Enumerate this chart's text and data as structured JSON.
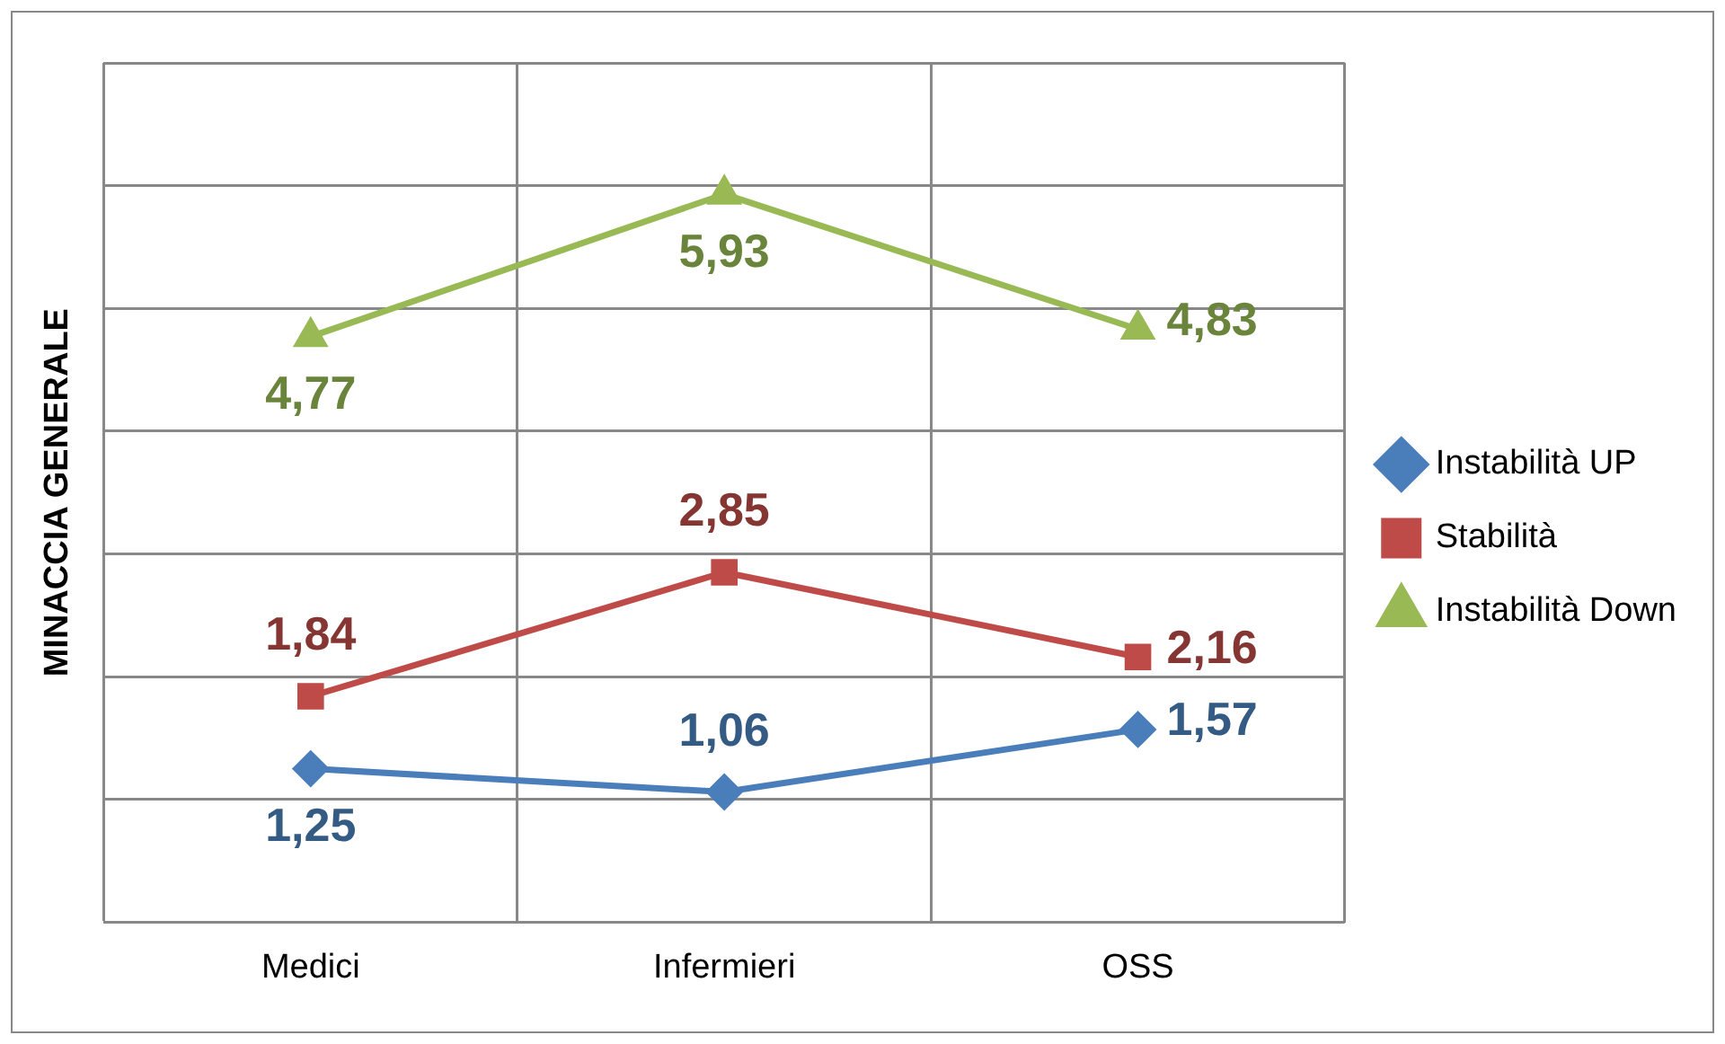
{
  "chart_data": {
    "type": "line",
    "ylabel": "MINACCIA GENERALE",
    "categories": [
      "Medici",
      "Infermieri",
      "OSS"
    ],
    "series": [
      {
        "name": "Instabilità UP",
        "color": "#4a7ebb",
        "marker": "diamond",
        "values": [
          1.25,
          1.06,
          1.57
        ],
        "value_labels": [
          "1,25",
          "1,06",
          "1,57"
        ]
      },
      {
        "name": "Stabilità",
        "color": "#be4b48",
        "marker": "square",
        "values": [
          1.84,
          2.85,
          2.16
        ],
        "value_labels": [
          "1,84",
          "2,85",
          "2,16"
        ]
      },
      {
        "name": "Instabilità Down",
        "color": "#98b954",
        "marker": "triangle",
        "values": [
          4.77,
          5.93,
          4.83
        ],
        "value_labels": [
          "4,77",
          "5,93",
          "4,83"
        ]
      }
    ],
    "tick_labels": "x",
    "grid": true,
    "legend": "right"
  }
}
